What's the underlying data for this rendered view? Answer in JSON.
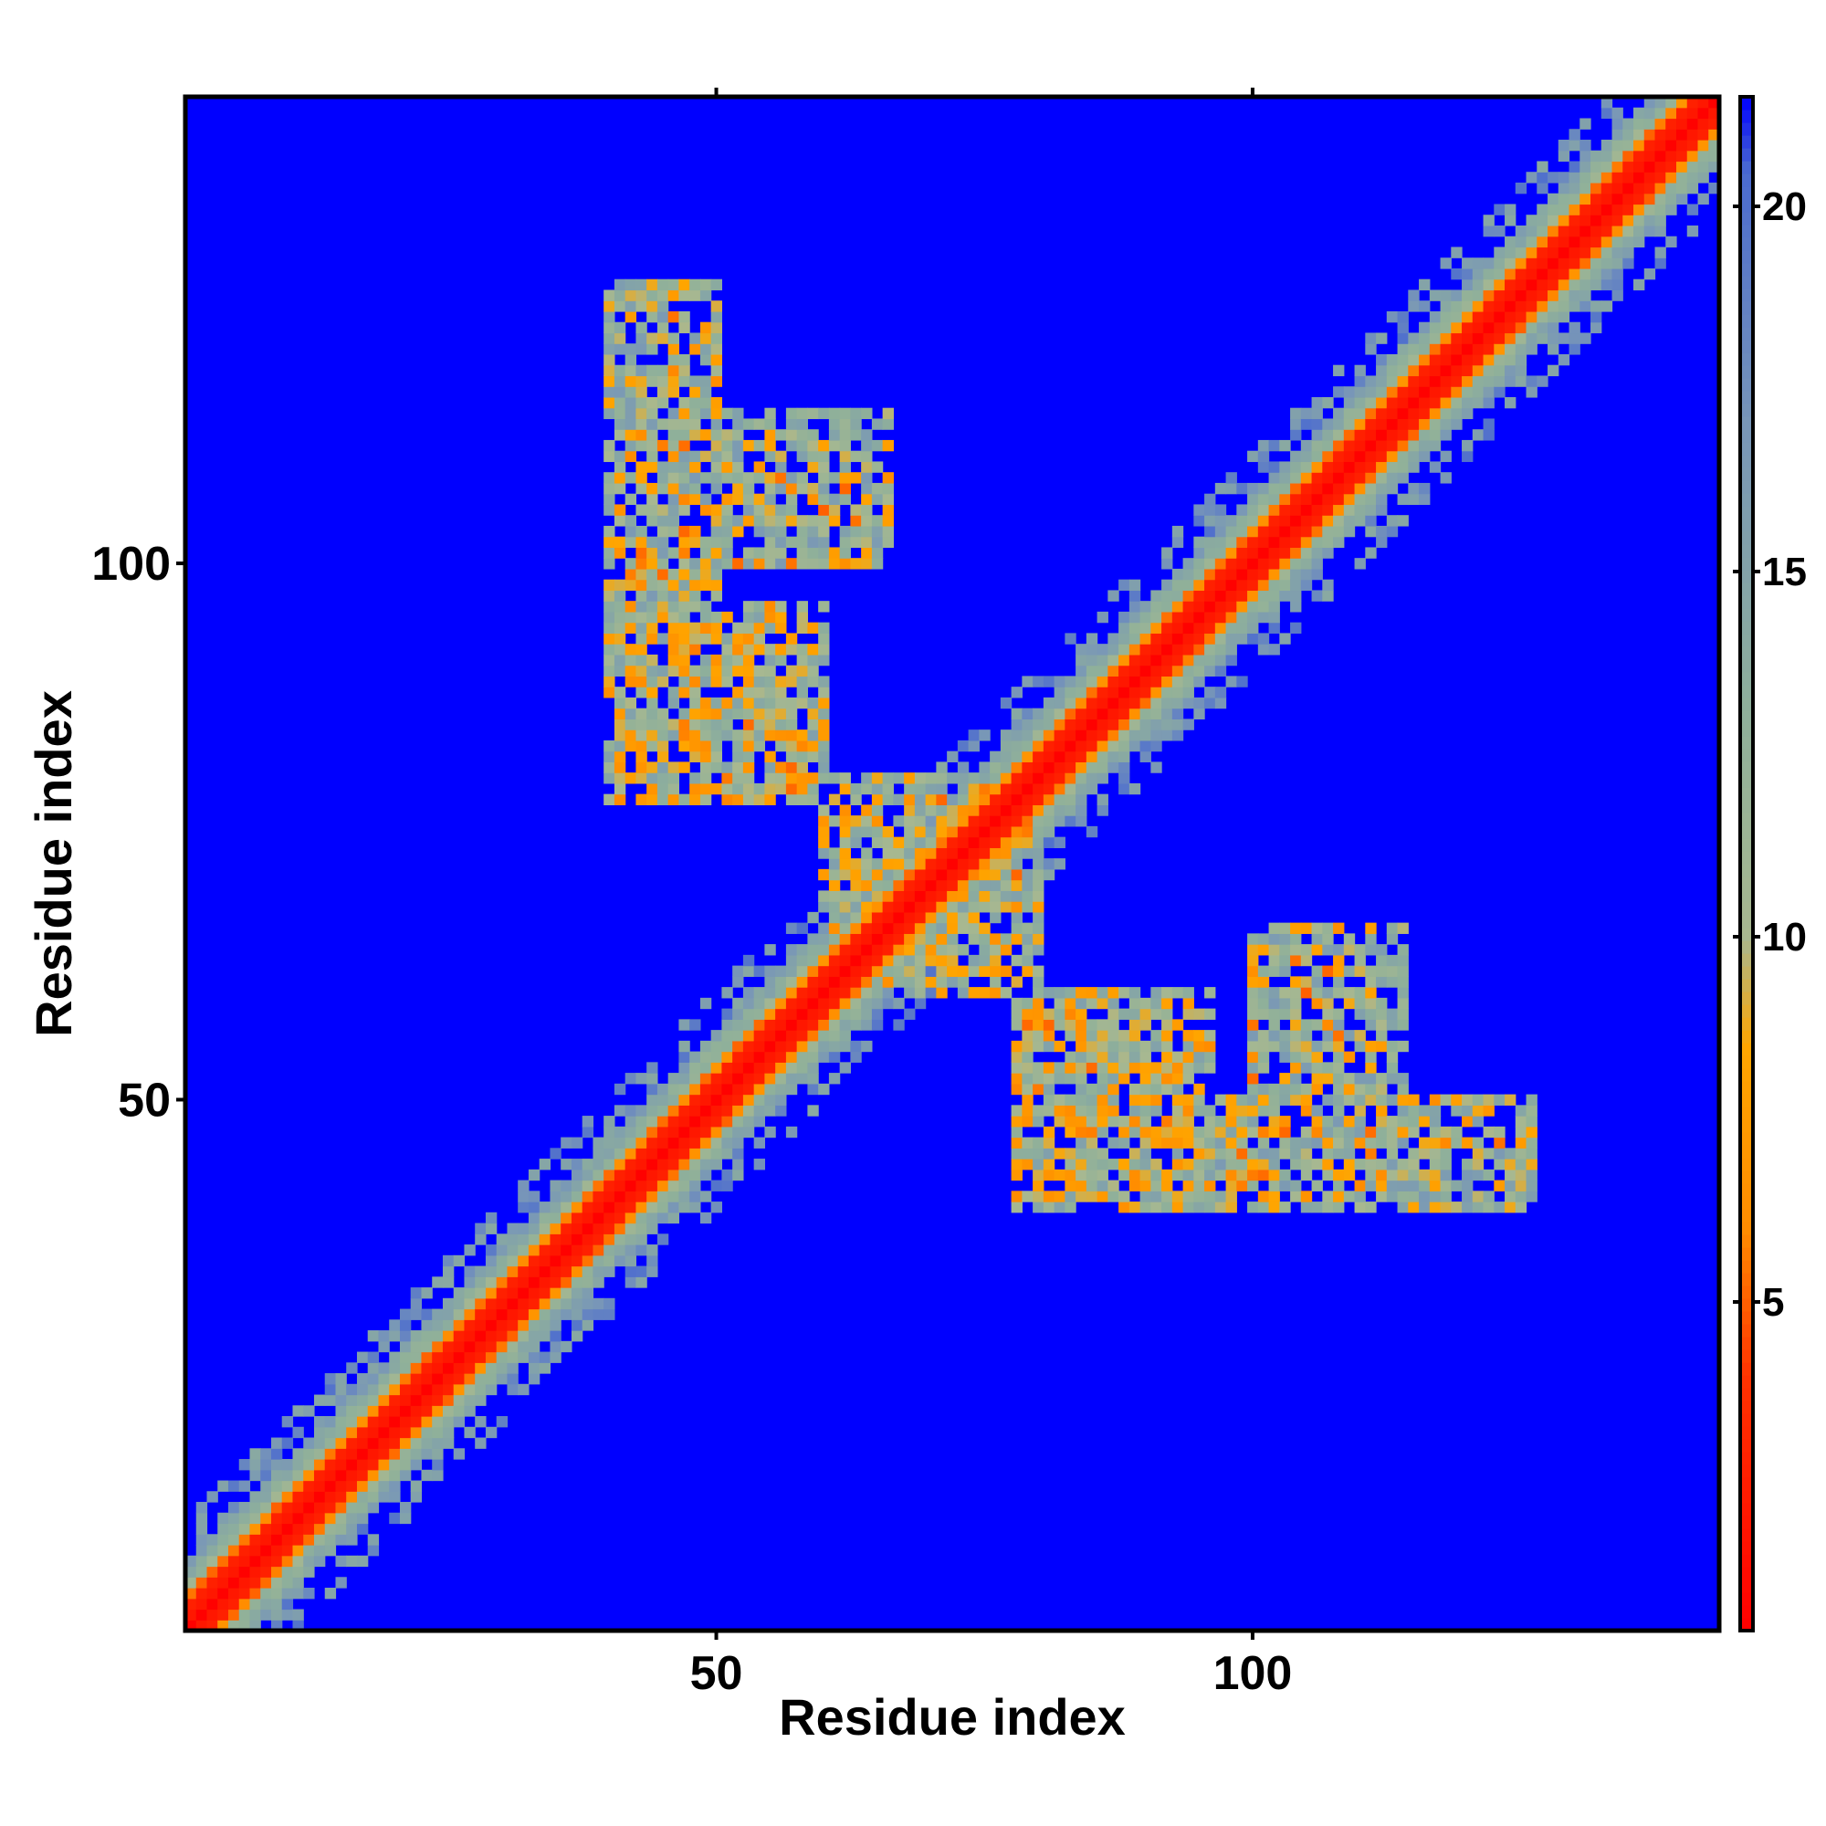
{
  "chart_data": {
    "type": "heatmap",
    "title": "",
    "xlabel": "Residue index",
    "ylabel": "Residue index",
    "n_residues": 143,
    "x_ticks": [
      50,
      100
    ],
    "y_ticks": [
      50,
      100
    ],
    "xlim": [
      1,
      143
    ],
    "ylim": [
      1,
      143
    ],
    "colorbar": {
      "ticks": [
        5,
        10,
        15,
        20
      ],
      "range": [
        0.5,
        21.5
      ],
      "stops": [
        {
          "value": 0.5,
          "color": "#ff0000"
        },
        {
          "value": 4,
          "color": "#ff3300"
        },
        {
          "value": 6,
          "color": "#ff8c00"
        },
        {
          "value": 8.5,
          "color": "#ffa500"
        },
        {
          "value": 10,
          "color": "#a8b890"
        },
        {
          "value": 13,
          "color": "#8fb09a"
        },
        {
          "value": 17,
          "color": "#7896b8"
        },
        {
          "value": 20.5,
          "color": "#4a6ad0"
        },
        {
          "value": 21.5,
          "color": "#0000ff"
        }
      ]
    },
    "background_color": "#0000ff",
    "structure": {
      "diagonal_band_width": 6,
      "contact_regions": [
        {
          "residues_a": [
            40,
            50
          ],
          "residues_b": [
            96,
            126
          ],
          "mean_distance": 12
        },
        {
          "residues_a": [
            53,
            60
          ],
          "residues_b": [
            78,
            96
          ],
          "mean_distance": 11
        },
        {
          "residues_a": [
            78,
            96
          ],
          "residues_b": [
            40,
            60
          ],
          "mean_distance": 11
        },
        {
          "residues_a": [
            100,
            114
          ],
          "residues_b": [
            40,
            66
          ],
          "mean_distance": 12
        },
        {
          "residues_a": [
            60,
            78
          ],
          "residues_b": [
            62,
            80
          ],
          "mean_distance": 11
        }
      ]
    }
  }
}
